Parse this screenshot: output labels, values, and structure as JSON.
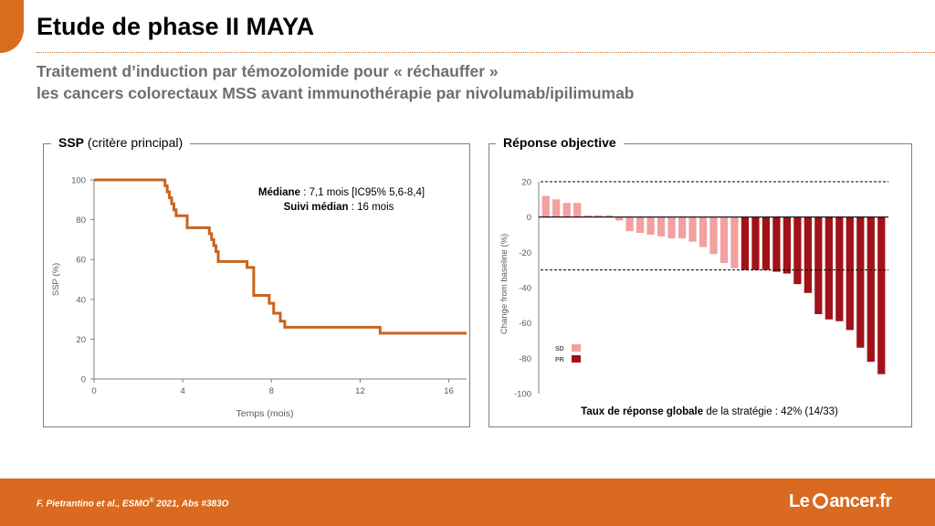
{
  "slide": {
    "title": "Etude de phase II MAYA",
    "subtitle_line1": "Traitement d’induction par témozolomide pour « réchauffer »",
    "subtitle_line2": "les cancers colorectaux MSS avant immunothérapie par nivolumab/ipilimumab"
  },
  "colors": {
    "accent": "#d96d1e",
    "km_line": "#c8641e",
    "sd_bar": "#f2a0a0",
    "pr_bar": "#a11218"
  },
  "footer": {
    "citation": "F. Pietrantino et al.,  ESMO",
    "citation_sup": "®",
    "citation_tail": " 2021, Abs #383O",
    "logo_left": "Le",
    "logo_right": "ancer.fr"
  },
  "chart_data": [
    {
      "type": "line",
      "panel_title_bold": "SSP",
      "panel_title_rest": " (critère principal)",
      "xlabel": "Temps (mois)",
      "ylabel": "SSP (%)",
      "xlim": [
        0,
        16.8
      ],
      "ylim": [
        0,
        100
      ],
      "xticks": [
        0,
        4,
        8,
        12,
        16
      ],
      "yticks": [
        0,
        20,
        40,
        60,
        80,
        100
      ],
      "grid": false,
      "annotation": {
        "median_label": "Médiane",
        "median_value": " : 7,1 mois [IC95% 5,6-8,4]",
        "followup_label": "Suivi médian",
        "followup_value": " : 16 mois"
      },
      "series": [
        {
          "x": [
            0,
            3.1,
            3.2,
            3.3,
            3.4,
            3.5,
            3.6,
            3.7,
            3.8,
            4.2,
            5.0,
            5.2,
            5.3,
            5.4,
            5.5,
            5.6,
            6.6,
            6.9,
            7.2,
            7.9,
            8.1,
            8.4,
            8.6,
            12.9,
            16.8
          ],
          "y": [
            100,
            100,
            97,
            94,
            91,
            88,
            85,
            82,
            82,
            76,
            76,
            73,
            70,
            67,
            64,
            59,
            59,
            56,
            42,
            38,
            33,
            29,
            26,
            23,
            23
          ]
        }
      ]
    },
    {
      "type": "bar",
      "panel_title": "Réponse objective",
      "ylabel": "Change from baseline (%)",
      "ylim": [
        -100,
        20
      ],
      "yticks": [
        20,
        0,
        -20,
        -40,
        -60,
        -80,
        -100
      ],
      "reference_lines": [
        20,
        -30
      ],
      "legend": [
        {
          "label": "SD",
          "color": "#f2a0a0"
        },
        {
          "label": "PR",
          "color": "#a11218"
        }
      ],
      "legend_position": "bottom-left",
      "footnote_bold": "Taux de réponse globale",
      "footnote_rest": " de la stratégie : 42% (14/33)",
      "values": [
        12,
        10,
        8,
        8,
        1,
        1,
        1,
        -2,
        -8,
        -9,
        -10,
        -11,
        -12,
        -12,
        -14,
        -17,
        -21,
        -26,
        -29,
        -30,
        -30,
        -30,
        -31,
        -32,
        -38,
        -43,
        -55,
        -58,
        -59,
        -64,
        -74,
        -82,
        -89
      ],
      "groups": [
        "SD",
        "SD",
        "SD",
        "SD",
        "SD",
        "SD",
        "SD",
        "SD",
        "SD",
        "SD",
        "SD",
        "SD",
        "SD",
        "SD",
        "SD",
        "SD",
        "SD",
        "SD",
        "SD",
        "PR",
        "PR",
        "PR",
        "PR",
        "PR",
        "PR",
        "PR",
        "PR",
        "PR",
        "PR",
        "PR",
        "PR",
        "PR",
        "PR"
      ]
    }
  ]
}
